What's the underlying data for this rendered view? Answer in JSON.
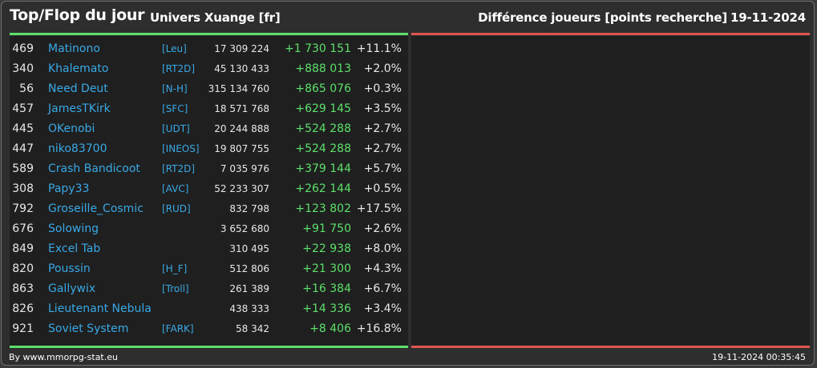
{
  "header": {
    "title": "Top/Flop du jour",
    "subtitle": "Univers Xuange [fr]",
    "right_title": "Différence joueurs [points recherche]",
    "date": "19-11-2024"
  },
  "colors": {
    "positive": "#5ce06b",
    "negative": "#e0554f",
    "link": "#39a9e6"
  },
  "top": [
    {
      "rank": "469",
      "name": "Matinono",
      "alliance": "[Leu]",
      "points": "17 309 224",
      "diff": "+1 730 151",
      "pct": "+11.1%"
    },
    {
      "rank": "340",
      "name": "Khalemato",
      "alliance": "[RT2D]",
      "points": "45 130 433",
      "diff": "+888 013",
      "pct": "+2.0%"
    },
    {
      "rank": "56",
      "name": "Need Deut",
      "alliance": "[N-H]",
      "points": "315 134 760",
      "diff": "+865 076",
      "pct": "+0.3%"
    },
    {
      "rank": "457",
      "name": "JamesTKirk",
      "alliance": "[SFC]",
      "points": "18 571 768",
      "diff": "+629 145",
      "pct": "+3.5%"
    },
    {
      "rank": "445",
      "name": "OKenobi",
      "alliance": "[UDT]",
      "points": "20 244 888",
      "diff": "+524 288",
      "pct": "+2.7%"
    },
    {
      "rank": "447",
      "name": "niko83700",
      "alliance": "[INEOS]",
      "points": "19 807 755",
      "diff": "+524 288",
      "pct": "+2.7%"
    },
    {
      "rank": "589",
      "name": "Crash Bandicoot",
      "alliance": "[RT2D]",
      "points": "7 035 976",
      "diff": "+379 144",
      "pct": "+5.7%"
    },
    {
      "rank": "308",
      "name": "Papy33",
      "alliance": "[AVC]",
      "points": "52 233 307",
      "diff": "+262 144",
      "pct": "+0.5%"
    },
    {
      "rank": "792",
      "name": "Groseille_Cosmic",
      "alliance": "[RUD]",
      "points": "832 798",
      "diff": "+123 802",
      "pct": "+17.5%"
    },
    {
      "rank": "676",
      "name": "Solowing",
      "alliance": "",
      "points": "3 652 680",
      "diff": "+91 750",
      "pct": "+2.6%"
    },
    {
      "rank": "849",
      "name": "Excel Tab",
      "alliance": "",
      "points": "310 495",
      "diff": "+22 938",
      "pct": "+8.0%"
    },
    {
      "rank": "820",
      "name": "Poussin",
      "alliance": "[H_F]",
      "points": "512 806",
      "diff": "+21 300",
      "pct": "+4.3%"
    },
    {
      "rank": "863",
      "name": "Gallywix",
      "alliance": "[Troll]",
      "points": "261 389",
      "diff": "+16 384",
      "pct": "+6.7%"
    },
    {
      "rank": "826",
      "name": "Lieutenant Nebula",
      "alliance": "",
      "points": "438 333",
      "diff": "+14 336",
      "pct": "+3.4%"
    },
    {
      "rank": "921",
      "name": "Soviet System",
      "alliance": "[FARK]",
      "points": "58 342",
      "diff": "+8 406",
      "pct": "+16.8%"
    }
  ],
  "flop": [],
  "footer": {
    "credit": "By www.mmorpg-stat.eu",
    "timestamp": "19-11-2024 00:35:45"
  }
}
